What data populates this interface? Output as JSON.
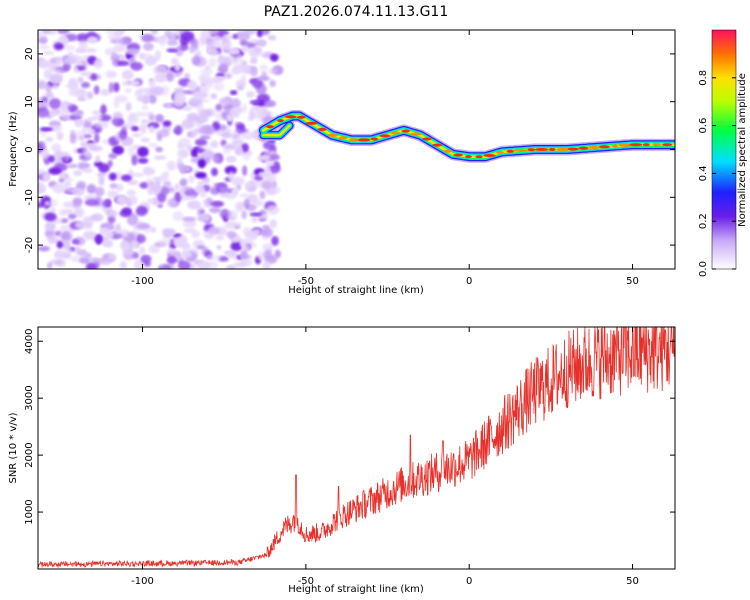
{
  "title": "PAZ1.2026.074.11.13.G11",
  "chart_data": [
    {
      "type": "heatmap",
      "xlabel": "Height of straight line (km)",
      "ylabel": "Frequency (Hz)",
      "xlim": [
        -132,
        63
      ],
      "ylim": [
        -25,
        25
      ],
      "xticks": [
        -100,
        -50,
        0,
        50
      ],
      "xtick_labels": [
        "-100",
        "-50",
        "0",
        "50"
      ],
      "yticks": [
        20,
        10,
        0,
        -10,
        -20
      ],
      "ytick_labels": [
        "20",
        "10",
        "0",
        "-10",
        "-20"
      ],
      "noise_region_x": [
        -132,
        -61
      ],
      "ridge": {
        "x": [
          -63,
          -58,
          -54,
          -52,
          -47,
          -42,
          -36,
          -30,
          -25,
          -20,
          -15,
          -10,
          -5,
          0,
          5,
          10,
          20,
          30,
          40,
          50,
          63
        ],
        "y": [
          4,
          6,
          7,
          7,
          5,
          3,
          2,
          2,
          3,
          4,
          3,
          1,
          -1,
          -1.5,
          -1.5,
          -0.5,
          0,
          0,
          0.5,
          1,
          1
        ]
      },
      "ridge_secondary": {
        "x": [
          -63,
          -58,
          -55
        ],
        "y": [
          3,
          3,
          5
        ]
      },
      "colorbar": {
        "label": "Normalized spectral amplitude",
        "range": [
          0,
          1
        ],
        "ticks": [
          0.0,
          0.2,
          0.4,
          0.6,
          0.8
        ],
        "tick_labels": [
          "0.0",
          "0.2",
          "0.4",
          "0.6",
          "0.8"
        ]
      }
    },
    {
      "type": "line",
      "xlabel": "Height of straight line (km)",
      "ylabel": "SNR (10 * v/v)",
      "xlim": [
        -132,
        63
      ],
      "ylim": [
        0,
        4250
      ],
      "xticks": [
        -100,
        -50,
        0,
        50
      ],
      "xtick_labels": [
        "-100",
        "-50",
        "0",
        "50"
      ],
      "yticks": [
        1000,
        2000,
        3000,
        4000
      ],
      "ytick_labels": [
        "1000",
        "2000",
        "3000",
        "4000"
      ],
      "color": "#e8302a",
      "trend": {
        "x": [
          -132,
          -90,
          -70,
          -62,
          -57,
          -53,
          -50,
          -45,
          -40,
          -30,
          -20,
          -10,
          0,
          10,
          20,
          30,
          40,
          50,
          63
        ],
        "y": [
          80,
          100,
          120,
          250,
          700,
          900,
          600,
          650,
          900,
          1200,
          1500,
          1700,
          1900,
          2500,
          3100,
          3500,
          3700,
          3800,
          3850
        ]
      },
      "spikes": [
        {
          "x": -53,
          "y": 1650
        },
        {
          "x": -40,
          "y": 1450
        },
        {
          "x": -18,
          "y": 2350
        },
        {
          "x": -8,
          "y": 2250
        },
        {
          "x": 60,
          "y": 4200
        }
      ]
    }
  ]
}
